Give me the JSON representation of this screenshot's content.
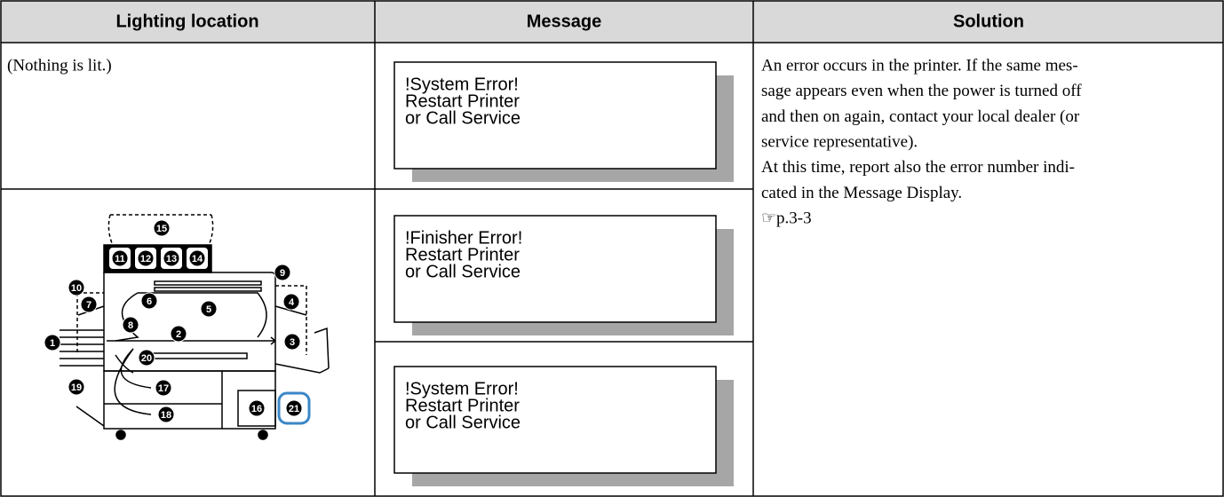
{
  "header": [
    "Lighting location",
    "Message",
    "Solution"
  ],
  "location_text": "(Nothing is lit.)",
  "diagram_labels": [
    "1",
    "2",
    "3",
    "4",
    "5",
    "6",
    "7",
    "8",
    "9",
    "10",
    "11",
    "12",
    "13",
    "14",
    "15",
    "16",
    "17",
    "18",
    "19",
    "20",
    "21"
  ],
  "messages": [
    [
      "!System Error!",
      "Restart Printer",
      "or Call Service"
    ],
    [
      "!Finisher Error!",
      "Restart Printer",
      "or Call Service"
    ],
    [
      "!System Error!",
      "Restart Printer",
      "or Call Service"
    ]
  ],
  "solution_lines": [
    "An error occurs in the printer. If the same mes-",
    "sage appears even when the power is turned off",
    "and then on again, contact your local dealer (or",
    "service representative).",
    "At this time, report also the error number indi-",
    "cated in the Message Display.",
    "☞p.3-3"
  ]
}
